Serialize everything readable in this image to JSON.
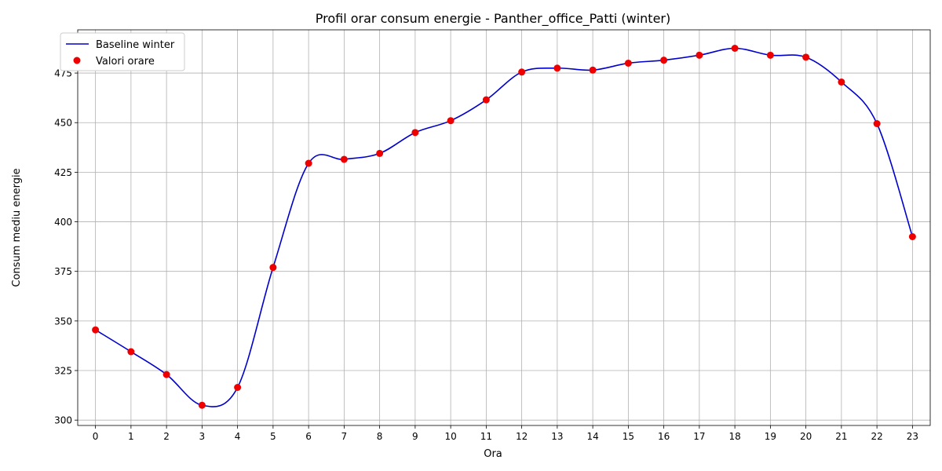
{
  "chart_data": {
    "type": "line",
    "title": "Profil orar consum energie - Panther_office_Patti (winter)",
    "xlabel": "Ora",
    "ylabel": "Consum mediu energie",
    "x": [
      0,
      1,
      2,
      3,
      4,
      5,
      6,
      7,
      8,
      9,
      10,
      11,
      12,
      13,
      14,
      15,
      16,
      17,
      18,
      19,
      20,
      21,
      22,
      23
    ],
    "series": [
      {
        "name": "Baseline winter",
        "kind": "line",
        "color": "#0000cc",
        "values": [
          345.5,
          334.5,
          323,
          307.5,
          316.5,
          377,
          429.5,
          431.5,
          434.5,
          445,
          451,
          461.5,
          475.5,
          477.5,
          476.5,
          480,
          481.5,
          484,
          487.5,
          484,
          483,
          470.5,
          449.5,
          392.5
        ]
      },
      {
        "name": "Valori orare",
        "kind": "scatter",
        "color": "#ee0000",
        "values": [
          345.5,
          334.5,
          323,
          307.5,
          316.5,
          377,
          429.5,
          431.5,
          434.5,
          445,
          451,
          461.5,
          475.5,
          477.5,
          476.5,
          480,
          481.5,
          484,
          487.5,
          484,
          483,
          470.5,
          449.5,
          392.5
        ]
      }
    ],
    "xticks": [
      "0",
      "1",
      "2",
      "3",
      "4",
      "5",
      "6",
      "7",
      "8",
      "9",
      "10",
      "11",
      "12",
      "13",
      "14",
      "15",
      "16",
      "17",
      "18",
      "19",
      "20",
      "21",
      "22",
      "23"
    ],
    "yticks": [
      "300",
      "325",
      "350",
      "375",
      "400",
      "425",
      "450",
      "475"
    ],
    "xlim": [
      -0.5,
      23.5
    ],
    "ylim": [
      297.3,
      496.8
    ],
    "grid": true,
    "legend_position": "top-left"
  }
}
